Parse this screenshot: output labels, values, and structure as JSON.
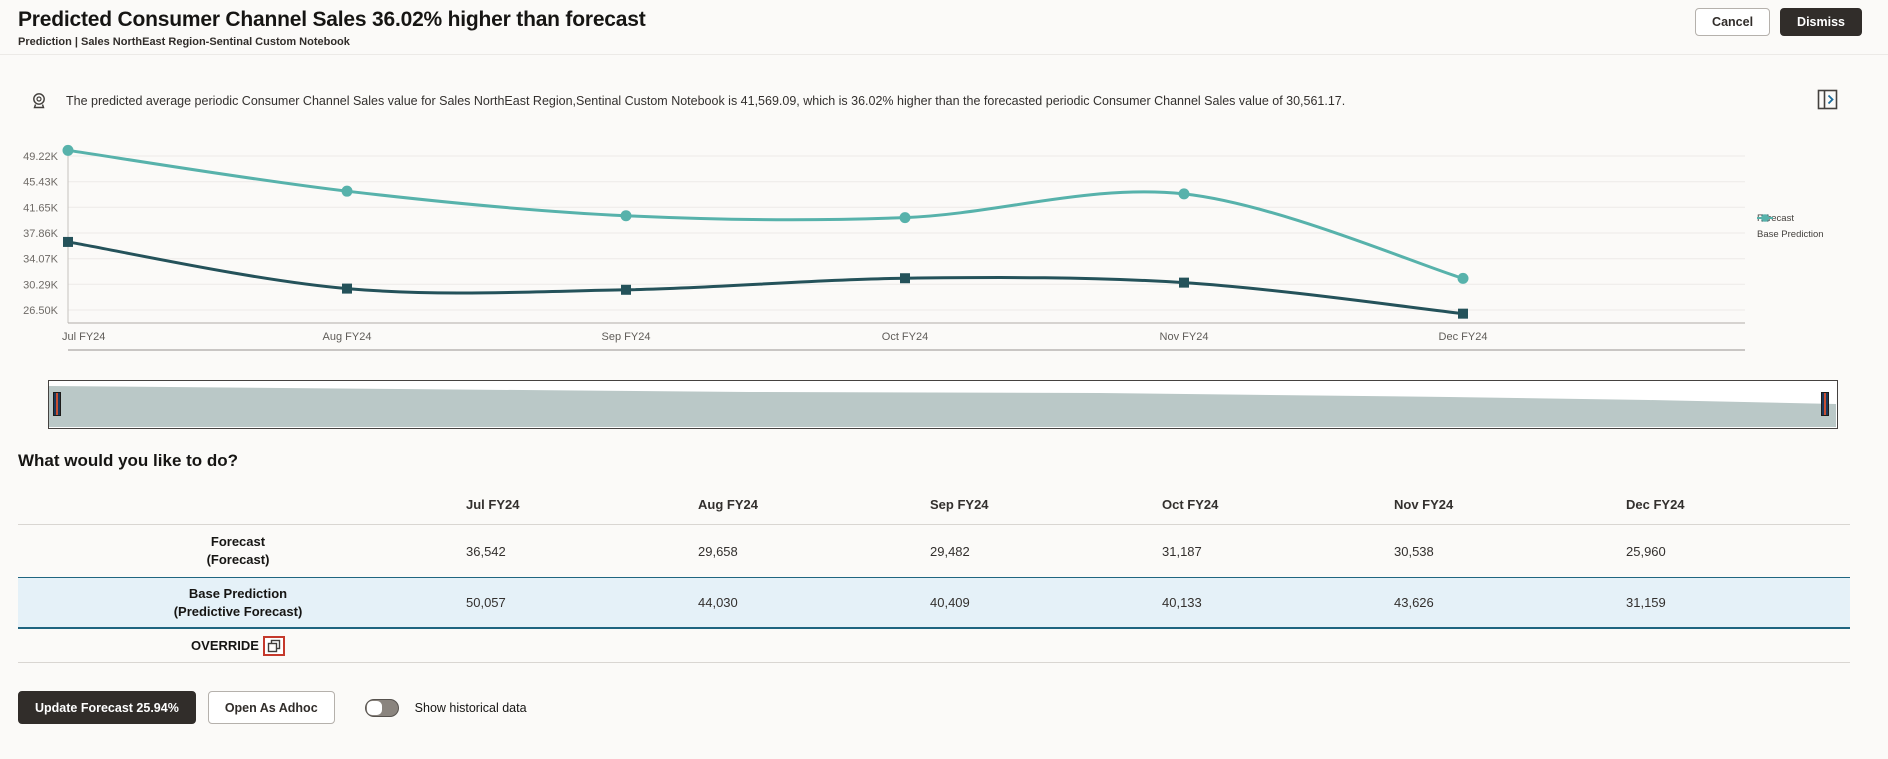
{
  "header": {
    "title": "Predicted Consumer Channel Sales 36.02% higher than forecast",
    "subtitle": "Prediction | Sales NorthEast Region-Sentinal Custom Notebook",
    "cancel_label": "Cancel",
    "dismiss_label": "Dismiss"
  },
  "insight": {
    "text": "The predicted average periodic Consumer Channel Sales value for Sales NorthEast Region,Sentinal Custom Notebook is 41,569.09, which is 36.02% higher than the forecasted periodic Consumer Channel Sales value of 30,561.17."
  },
  "chart_data": {
    "type": "line",
    "x": [
      "Jul FY24",
      "Aug FY24",
      "Sep FY24",
      "Oct FY24",
      "Nov FY24",
      "Dec FY24"
    ],
    "series": [
      {
        "name": "Forecast",
        "marker": "square",
        "color": "#24525a",
        "values": [
          36542,
          29658,
          29482,
          31187,
          30538,
          25960
        ]
      },
      {
        "name": "Base Prediction",
        "marker": "circle",
        "color": "#57b2ab",
        "values": [
          50057,
          44030,
          40409,
          40133,
          43626,
          31159
        ]
      }
    ],
    "y_ticks": [
      {
        "label": "49.22K",
        "value": 49220
      },
      {
        "label": "45.43K",
        "value": 45430
      },
      {
        "label": "41.65K",
        "value": 41650
      },
      {
        "label": "37.86K",
        "value": 37860
      },
      {
        "label": "34.07K",
        "value": 34070
      },
      {
        "label": "30.29K",
        "value": 30290
      },
      {
        "label": "26.50K",
        "value": 26500
      }
    ],
    "ylim": [
      26500,
      49220
    ],
    "grid": true,
    "legend_position": "right"
  },
  "section_heading": "What would you like to do?",
  "table": {
    "columns": [
      "Jul FY24",
      "Aug FY24",
      "Sep FY24",
      "Oct FY24",
      "Nov FY24",
      "Dec FY24"
    ],
    "rows": [
      {
        "label": "Forecast",
        "sublabel": "(Forecast)",
        "values": [
          "36,542",
          "29,658",
          "29,482",
          "31,187",
          "30,538",
          "25,960"
        ],
        "highlight": false,
        "override": false
      },
      {
        "label": "Base Prediction",
        "sublabel": "(Predictive Forecast)",
        "values": [
          "50,057",
          "44,030",
          "40,409",
          "40,133",
          "43,626",
          "31,159"
        ],
        "highlight": true,
        "override": false
      },
      {
        "label": "OVERRIDE",
        "sublabel": "",
        "values": [
          "",
          "",
          "",
          "",
          "",
          ""
        ],
        "highlight": false,
        "override": true
      }
    ]
  },
  "footer": {
    "update_label": "Update Forecast 25.94%",
    "adhoc_label": "Open As Adhoc",
    "toggle_label": "Show historical data",
    "toggle_state": "off"
  },
  "colors": {
    "forecast_line": "#24525a",
    "base_prediction_line": "#57b2ab",
    "highlight_row_bg": "#e5f1f8",
    "highlight_row_border": "#1f6580",
    "annotation_red": "#c5392c",
    "dark_button_bg": "#312d2a",
    "scrubber_fill": "#bac8c7"
  }
}
